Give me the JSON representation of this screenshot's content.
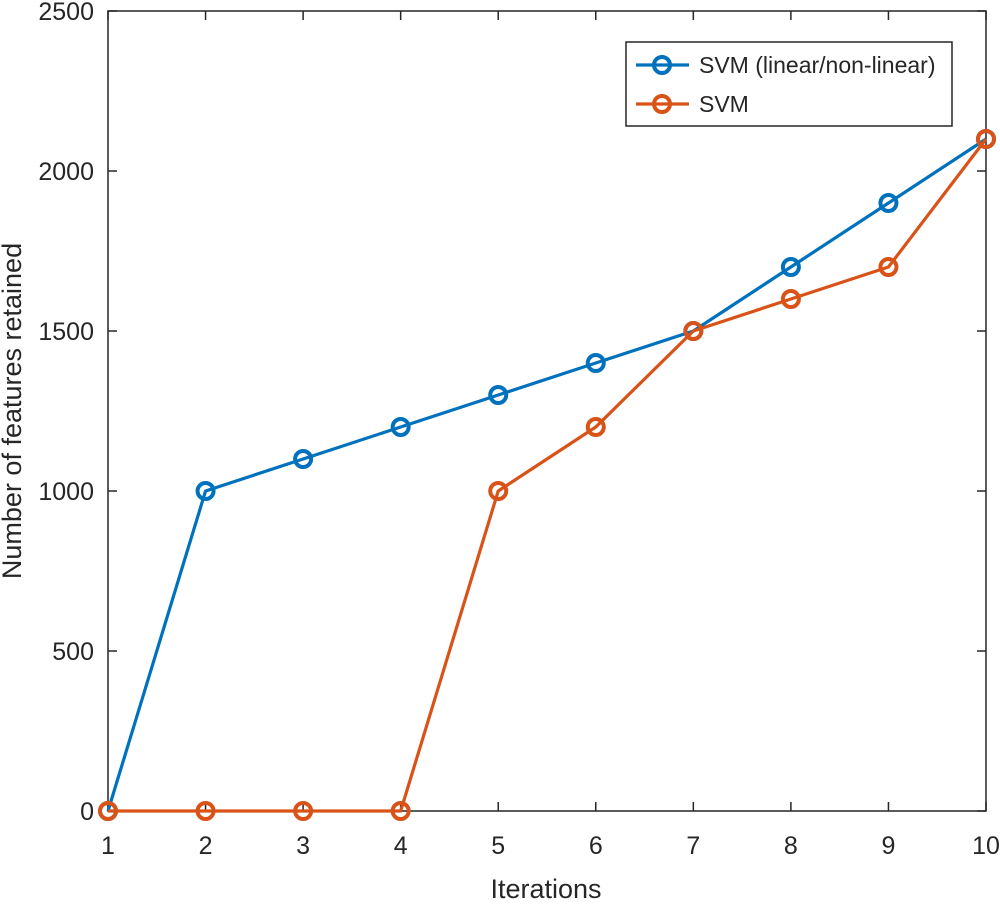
{
  "chart_data": {
    "type": "line",
    "title": "",
    "xlabel": "Iterations",
    "ylabel": "Number of features retained",
    "xlim": [
      1,
      10
    ],
    "ylim": [
      0,
      2500
    ],
    "x": [
      1,
      2,
      3,
      4,
      5,
      6,
      7,
      8,
      9,
      10
    ],
    "xticks": [
      "1",
      "2",
      "3",
      "4",
      "5",
      "6",
      "7",
      "8",
      "9",
      "10"
    ],
    "yticks": [
      "0",
      "500",
      "1000",
      "1500",
      "2000",
      "2500"
    ],
    "ytick_values": [
      0,
      500,
      1000,
      1500,
      2000,
      2500
    ],
    "grid": false,
    "legend_position": "top-right",
    "marker": "circle",
    "series": [
      {
        "name": "SVM (linear/non-linear)",
        "color": "#0072BD",
        "values": [
          0,
          1000,
          1100,
          1200,
          1300,
          1400,
          1500,
          1700,
          1900,
          2100
        ]
      },
      {
        "name": "SVM",
        "color": "#D95319",
        "values": [
          0,
          0,
          0,
          0,
          1000,
          1200,
          1500,
          1600,
          1700,
          2100
        ]
      }
    ]
  }
}
